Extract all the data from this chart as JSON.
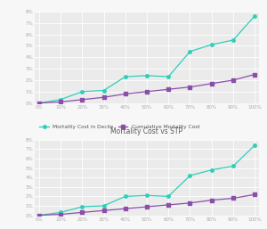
{
  "x_labels": [
    "0%",
    "10%",
    "20%",
    "30%",
    "40%",
    "50%",
    "60%",
    "70%",
    "80%",
    "90%",
    "100%"
  ],
  "x_values": [
    0,
    10,
    20,
    30,
    40,
    50,
    60,
    70,
    80,
    90,
    100
  ],
  "chart1": {
    "title": "",
    "ylim": [
      0,
      8
    ],
    "yticks": [
      0,
      1,
      2,
      3,
      4,
      5,
      6,
      7,
      8
    ],
    "series1_name": "Mortality Cost in Decile",
    "series1_color": "#2ecfba",
    "series1_values": [
      0.0,
      0.3,
      1.0,
      1.1,
      2.3,
      2.4,
      2.3,
      4.5,
      5.1,
      5.5,
      7.6
    ],
    "series2_name": "Cumulative Mortality Cost",
    "series2_color": "#8b4faa",
    "series2_values": [
      0.0,
      0.1,
      0.3,
      0.5,
      0.8,
      1.0,
      1.2,
      1.4,
      1.7,
      2.0,
      2.5
    ]
  },
  "chart2": {
    "title": "Mortality Cost vs STP",
    "ylim": [
      0,
      8
    ],
    "yticks": [
      0,
      1,
      2,
      3,
      4,
      5,
      6,
      7,
      8
    ],
    "series1_name": "Mortality Cost in Decile",
    "series1_color": "#2ecfba",
    "series1_values": [
      0.0,
      0.3,
      0.9,
      1.0,
      2.0,
      2.1,
      2.0,
      4.2,
      4.8,
      5.2,
      7.4
    ],
    "series2_name": "Cumulative Mortality Cost",
    "series2_color": "#8b4faa",
    "series2_values": [
      0.0,
      0.1,
      0.3,
      0.5,
      0.7,
      0.9,
      1.1,
      1.3,
      1.6,
      1.8,
      2.2
    ]
  },
  "bg_color": "#f7f7f7",
  "plot_bg_color": "#ebebeb",
  "grid_color": "#ffffff",
  "tick_color": "#aaaaaa",
  "tick_fontsize": 4.0,
  "title_fontsize": 5.5,
  "legend_fontsize": 4.2,
  "marker_size": 2.5,
  "line_width": 0.9
}
